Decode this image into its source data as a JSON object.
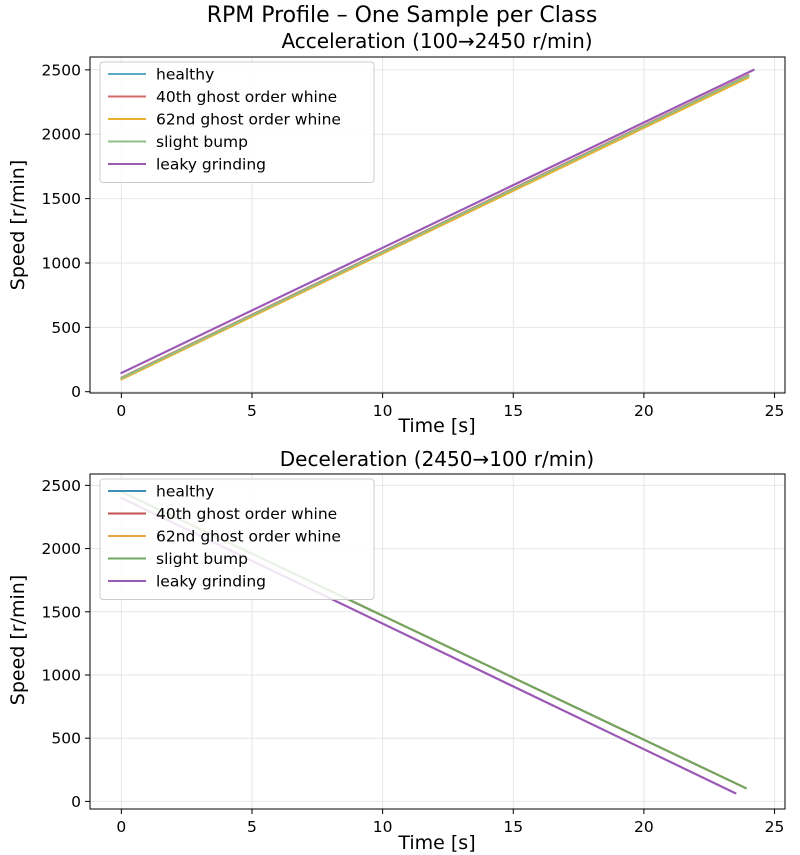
{
  "figure": {
    "suptitle": "RPM Profile – One Sample per Class"
  },
  "chart_data": [
    {
      "type": "line",
      "title": "Acceleration (100→2450 r/min)",
      "xlabel": "Time [s]",
      "ylabel": "Speed [r/min]",
      "xlim": [
        -1.2,
        25.4
      ],
      "ylim": [
        -10,
        2600
      ],
      "xticks": [
        0,
        5,
        10,
        15,
        20,
        25
      ],
      "yticks": [
        0,
        500,
        1000,
        1500,
        2000,
        2500
      ],
      "grid": true,
      "legend": "top-left",
      "series": [
        {
          "name": "healthy",
          "color": "#5aa9c8",
          "x": [
            0,
            24
          ],
          "y": [
            100,
            2450
          ]
        },
        {
          "name": "40th ghost order whine",
          "color": "#d46a6a",
          "x": [
            0,
            24
          ],
          "y": [
            110,
            2460
          ]
        },
        {
          "name": "62nd ghost order whine",
          "color": "#e8b130",
          "x": [
            0,
            24
          ],
          "y": [
            95,
            2440
          ]
        },
        {
          "name": "slight bump",
          "color": "#8fbf87",
          "x": [
            0,
            24
          ],
          "y": [
            105,
            2455
          ]
        },
        {
          "name": "leaky grinding",
          "color": "#9b59b6",
          "x": [
            0,
            24.2
          ],
          "y": [
            145,
            2500
          ]
        }
      ]
    },
    {
      "type": "line",
      "title": "Deceleration (2450→100 r/min)",
      "xlabel": "Time [s]",
      "ylabel": "Speed [r/min]",
      "xlim": [
        -1.2,
        25.4
      ],
      "ylim": [
        -60,
        2590
      ],
      "xticks": [
        0,
        5,
        10,
        15,
        20,
        25
      ],
      "yticks": [
        0,
        500,
        1000,
        1500,
        2000,
        2500
      ],
      "grid": true,
      "legend": "top-left",
      "series": [
        {
          "name": "healthy",
          "color": "#3a8fb5",
          "x": [
            0,
            23.9
          ],
          "y": [
            2450,
            105
          ]
        },
        {
          "name": "40th ghost order whine",
          "color": "#c0504d",
          "x": [
            0,
            23.9
          ],
          "y": [
            2450,
            105
          ]
        },
        {
          "name": "62nd ghost order whine",
          "color": "#e8a33d",
          "x": [
            0,
            23.9
          ],
          "y": [
            2450,
            105
          ]
        },
        {
          "name": "slight bump",
          "color": "#6fa760",
          "x": [
            0,
            23.9
          ],
          "y": [
            2450,
            105
          ]
        },
        {
          "name": "leaky grinding",
          "color": "#9b59b6",
          "x": [
            0,
            23.5
          ],
          "y": [
            2400,
            65
          ]
        }
      ]
    }
  ]
}
